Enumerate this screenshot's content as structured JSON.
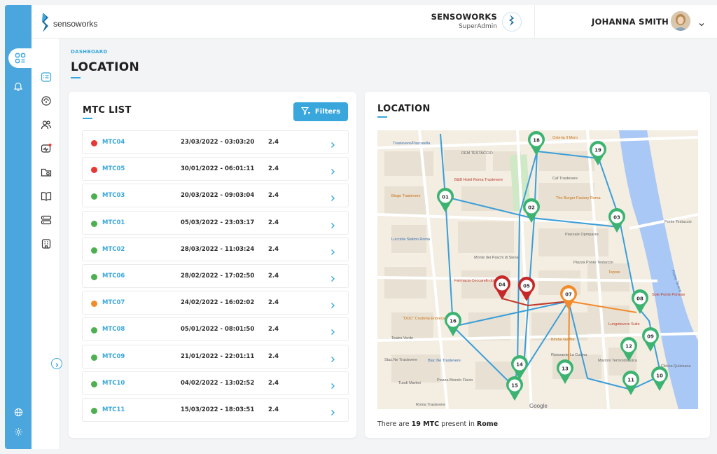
{
  "app": {
    "logo_text": "sensoworks",
    "company_name": "SENSOWORKS",
    "company_role": "SuperAdmin",
    "user_name": "JOHANNA SMITH"
  },
  "page": {
    "breadcrumb": "DASHBOARD",
    "title": "LOCATION"
  },
  "mtc_list": {
    "title": "MTC LIST",
    "filters_label": "Filters",
    "rows": [
      {
        "name": "MTC04",
        "date": "23/03/2022 - 03:03:20",
        "value": "2.4",
        "status": "red"
      },
      {
        "name": "MTC05",
        "date": "30/01/2022 - 06:01:11",
        "value": "2.4",
        "status": "red"
      },
      {
        "name": "MTC03",
        "date": "20/03/2022 - 09:03:04",
        "value": "2.4",
        "status": "green"
      },
      {
        "name": "MTC01",
        "date": "05/03/2022 - 23:03:17",
        "value": "2.4",
        "status": "green"
      },
      {
        "name": "MTC02",
        "date": "28/03/2022 - 11:03:24",
        "value": "2.4",
        "status": "green"
      },
      {
        "name": "MTC06",
        "date": "28/02/2022 - 17:02:50",
        "value": "2.4",
        "status": "green"
      },
      {
        "name": "MTC07",
        "date": "24/02/2022 - 16:02:02",
        "value": "2.4",
        "status": "orange"
      },
      {
        "name": "MTC08",
        "date": "05/01/2022 - 08:01:50",
        "value": "2.4",
        "status": "green"
      },
      {
        "name": "MTC09",
        "date": "21/01/2022 - 22:01:11",
        "value": "2.4",
        "status": "green"
      },
      {
        "name": "MTC10",
        "date": "04/02/2022 - 13:02:52",
        "value": "2.4",
        "status": "green"
      },
      {
        "name": "MTC11",
        "date": "15/03/2022 - 18:03:51",
        "value": "2.4",
        "status": "green"
      }
    ]
  },
  "location": {
    "title": "LOCATION",
    "footer_prefix": "There are ",
    "footer_count": "19 MTC",
    "footer_middle": " present in ",
    "footer_city": "Rome",
    "map_attribution": "Google",
    "map_labels": [
      "Trastevere/Pascarella",
      "DEM TESTACCIO",
      "Osteria Il Moro",
      "Caf Trastevere",
      "B&B Hotel Roma Trastevere",
      "Bingo Trastevere",
      "Lucciola Station Roma",
      "Monte dei Paschi di Siena",
      "Farmacia Ceccarelli dott. Matteo",
      "Piazza Ponte Testaccio",
      "Lungotevere Suite",
      "Sole Ponte Portese",
      "\"DOC\" Cruderia Enoteca",
      "Teatro Verde",
      "Staz.Ne Trastevere",
      "Blac Ne Trastevere",
      "Tuodi Market",
      "Piazza Biondo Flavio",
      "Roma Trastevere",
      "Ponte Testaccio",
      "Fiume Tevere",
      "Piazzale Opmparze",
      "The Burger Factory Roma",
      "Tepore",
      "Marroni Termoidraulica",
      "Bimba Gioffre",
      "Ristorante La Cucina",
      "Clinica Quisisana"
    ],
    "pins": [
      {
        "id": "01",
        "status": "green"
      },
      {
        "id": "02",
        "status": "green"
      },
      {
        "id": "03",
        "status": "green"
      },
      {
        "id": "04",
        "status": "red"
      },
      {
        "id": "05",
        "status": "red"
      },
      {
        "id": "07",
        "status": "orange"
      },
      {
        "id": "08",
        "status": "green"
      },
      {
        "id": "09",
        "status": "green"
      },
      {
        "id": "10",
        "status": "green"
      },
      {
        "id": "11",
        "status": "green"
      },
      {
        "id": "12",
        "status": "green"
      },
      {
        "id": "13",
        "status": "green"
      },
      {
        "id": "14",
        "status": "green"
      },
      {
        "id": "15",
        "status": "green"
      },
      {
        "id": "16",
        "status": "green"
      },
      {
        "id": "18",
        "status": "green"
      },
      {
        "id": "19",
        "status": "green"
      }
    ]
  },
  "colors": {
    "accent": "#3aa7dc",
    "rail": "#4ba6dd",
    "status_red": "#e53935",
    "status_green": "#4caf50",
    "status_orange": "#f28b2b"
  },
  "icons": {
    "rail": [
      "dashboard-icon",
      "bell-icon",
      "globe-icon",
      "settings-icon"
    ],
    "sidebar": [
      "list-icon",
      "sensor-icon",
      "users-icon",
      "monitor-alert-icon",
      "folder-icon",
      "book-icon",
      "server-icon",
      "building-icon"
    ]
  }
}
